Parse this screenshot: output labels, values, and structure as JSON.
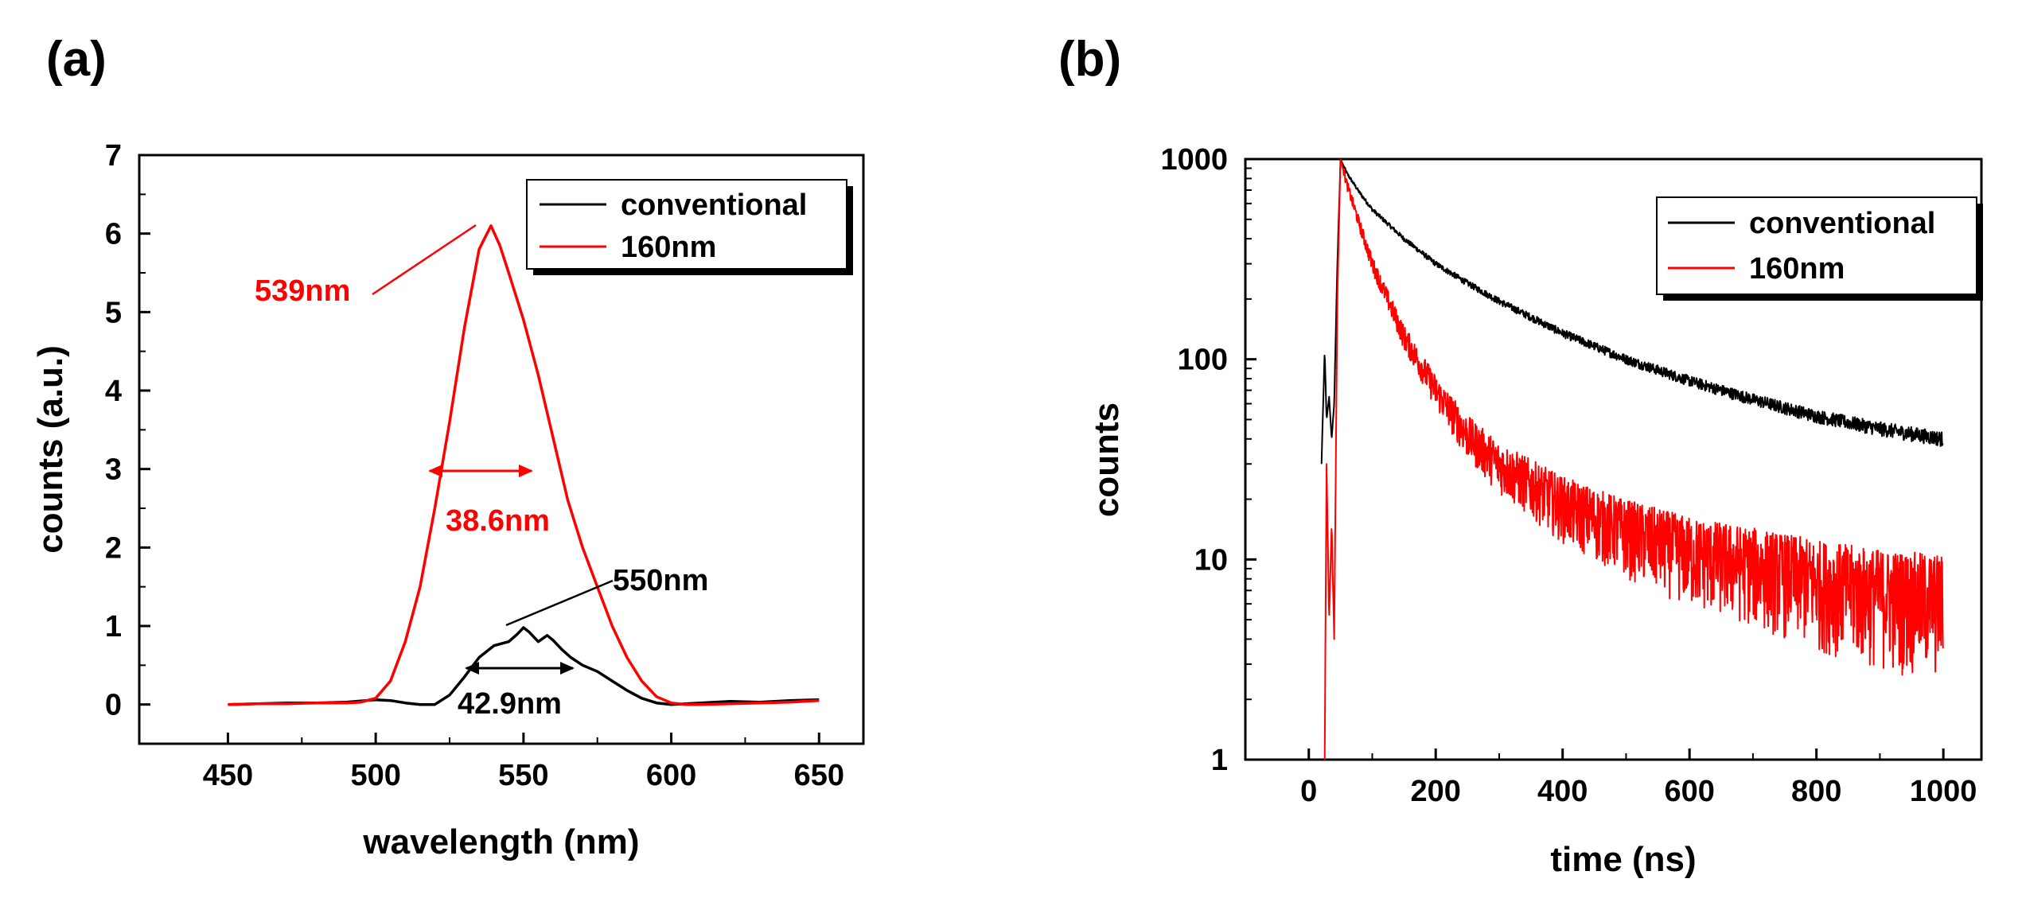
{
  "chart_data": [
    {
      "panel": "(a)",
      "type": "line",
      "xlabel": "wavelength (nm)",
      "ylabel": "counts (a.u.)",
      "xlim": [
        420,
        665
      ],
      "ylim": [
        -0.5,
        7
      ],
      "xticks": [
        450,
        500,
        550,
        600,
        650
      ],
      "yticks": [
        0,
        1,
        2,
        3,
        4,
        5,
        6,
        7
      ],
      "legend": {
        "position": "top-right",
        "entries": [
          "conventional",
          "160nm"
        ]
      },
      "series": [
        {
          "name": "conventional",
          "color": "#000000",
          "x": [
            450,
            460,
            470,
            480,
            490,
            500,
            505,
            510,
            515,
            520,
            525,
            530,
            535,
            540,
            545,
            548,
            550,
            552,
            555,
            558,
            560,
            563,
            566,
            570,
            575,
            580,
            585,
            590,
            595,
            600,
            610,
            620,
            630,
            640,
            650
          ],
          "y": [
            0.0,
            0.01,
            0.02,
            0.02,
            0.03,
            0.06,
            0.05,
            0.02,
            0.0,
            0.0,
            0.12,
            0.35,
            0.6,
            0.75,
            0.8,
            0.9,
            0.98,
            0.92,
            0.8,
            0.88,
            0.82,
            0.7,
            0.6,
            0.5,
            0.42,
            0.3,
            0.18,
            0.08,
            0.02,
            0.0,
            0.02,
            0.04,
            0.03,
            0.05,
            0.06
          ]
        },
        {
          "name": "160nm",
          "color": "#ff0000",
          "x": [
            450,
            460,
            470,
            480,
            490,
            495,
            500,
            505,
            510,
            515,
            520,
            525,
            530,
            535,
            539,
            542,
            545,
            550,
            555,
            560,
            565,
            570,
            575,
            580,
            585,
            590,
            595,
            600,
            605,
            610,
            620,
            630,
            640,
            650
          ],
          "y": [
            0.0,
            0.01,
            0.01,
            0.02,
            0.02,
            0.03,
            0.08,
            0.3,
            0.8,
            1.5,
            2.5,
            3.6,
            4.8,
            5.8,
            6.1,
            5.85,
            5.5,
            4.9,
            4.2,
            3.4,
            2.6,
            2.0,
            1.5,
            1.0,
            0.6,
            0.3,
            0.1,
            0.02,
            0.0,
            0.0,
            0.01,
            0.02,
            0.03,
            0.05
          ]
        }
      ],
      "annotations": [
        {
          "text": "539nm",
          "color": "#ff0000"
        },
        {
          "text": "38.6nm",
          "color": "#ff0000"
        },
        {
          "text": "550nm",
          "color": "#000000"
        },
        {
          "text": "42.9nm",
          "color": "#000000"
        }
      ]
    },
    {
      "panel": "(b)",
      "type": "line",
      "xlabel": "time (ns)",
      "ylabel": "counts",
      "xlim": [
        -100,
        1060
      ],
      "ylim": [
        1,
        1000
      ],
      "yscale": "log",
      "xticks": [
        0,
        200,
        400,
        600,
        800,
        1000
      ],
      "yticks": [
        1,
        10,
        100,
        1000
      ],
      "legend": {
        "position": "top-right",
        "entries": [
          "conventional",
          "160nm"
        ]
      },
      "series": [
        {
          "name": "conventional",
          "color": "#000000",
          "x": [
            20,
            25,
            28,
            32,
            36,
            40,
            45,
            50,
            60,
            80,
            100,
            150,
            200,
            250,
            300,
            400,
            500,
            600,
            700,
            800,
            900,
            1000
          ],
          "y": [
            30,
            110,
            50,
            65,
            40,
            60,
            300,
            1000,
            850,
            680,
            560,
            400,
            300,
            240,
            195,
            135,
            100,
            78,
            63,
            52,
            45,
            40
          ]
        },
        {
          "name": "160nm",
          "color": "#ff0000",
          "x": [
            25,
            28,
            32,
            36,
            40,
            45,
            50,
            60,
            80,
            100,
            150,
            200,
            250,
            300,
            400,
            500,
            600,
            700,
            800,
            900,
            1000
          ],
          "y": [
            1,
            30,
            5,
            15,
            4,
            200,
            1000,
            750,
            470,
            300,
            130,
            70,
            42,
            30,
            19,
            14,
            11,
            9.5,
            8,
            7,
            6.5
          ]
        }
      ]
    }
  ]
}
